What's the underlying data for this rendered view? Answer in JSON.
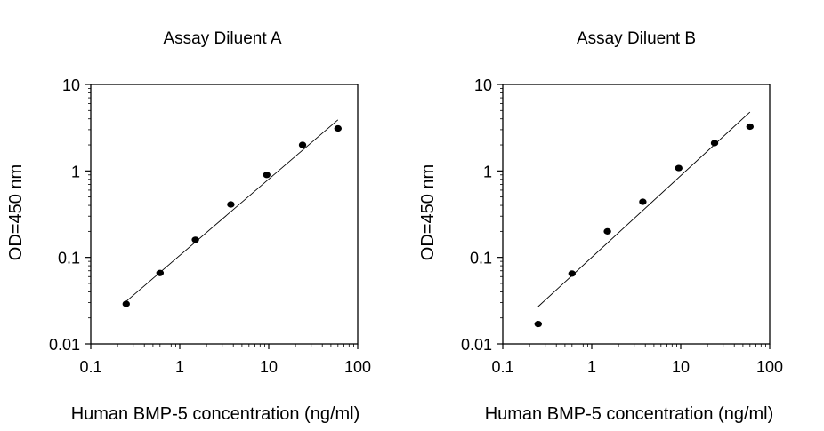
{
  "chart_data": [
    {
      "type": "scatter",
      "title": "Assay Diluent A",
      "xlabel": "Human BMP-5 concentration (ng/ml)",
      "ylabel": "OD=450 nm",
      "xscale": "log",
      "yscale": "log",
      "xlim": [
        0.1,
        100
      ],
      "ylim": [
        0.01,
        10
      ],
      "xticks": [
        0.1,
        1,
        10,
        100
      ],
      "xtick_labels": [
        "0.1",
        "1",
        "10",
        "100"
      ],
      "yticks": [
        0.01,
        0.1,
        1,
        10
      ],
      "ytick_labels": [
        "0.01",
        "0.1",
        "1",
        "10"
      ],
      "grid": false,
      "series": [
        {
          "x": [
            0.25,
            0.6,
            1.5,
            3.75,
            9.5,
            24,
            60
          ],
          "y": [
            0.029,
            0.066,
            0.16,
            0.41,
            0.9,
            2.0,
            3.1
          ]
        }
      ],
      "fit_line": {
        "x": [
          0.25,
          60
        ],
        "y": [
          0.031,
          3.9
        ]
      }
    },
    {
      "type": "scatter",
      "title": "Assay Diluent B",
      "xlabel": "Human BMP-5 concentration (ng/ml)",
      "ylabel": "OD=450 nm",
      "xscale": "log",
      "yscale": "log",
      "xlim": [
        0.1,
        100
      ],
      "ylim": [
        0.01,
        10
      ],
      "xticks": [
        0.1,
        1,
        10,
        100
      ],
      "xtick_labels": [
        "0.1",
        "1",
        "10",
        "100"
      ],
      "yticks": [
        0.01,
        0.1,
        1,
        10
      ],
      "ytick_labels": [
        "0.01",
        "0.1",
        "1",
        "10"
      ],
      "grid": false,
      "series": [
        {
          "x": [
            0.25,
            0.6,
            1.5,
            3.75,
            9.5,
            24,
            60
          ],
          "y": [
            0.017,
            0.065,
            0.2,
            0.44,
            1.08,
            2.1,
            3.25
          ]
        }
      ],
      "fit_line": {
        "x": [
          0.25,
          60
        ],
        "y": [
          0.027,
          4.8
        ]
      }
    }
  ],
  "colors": {
    "marker": "#000000",
    "line": "#000000",
    "axis": "#000000"
  }
}
